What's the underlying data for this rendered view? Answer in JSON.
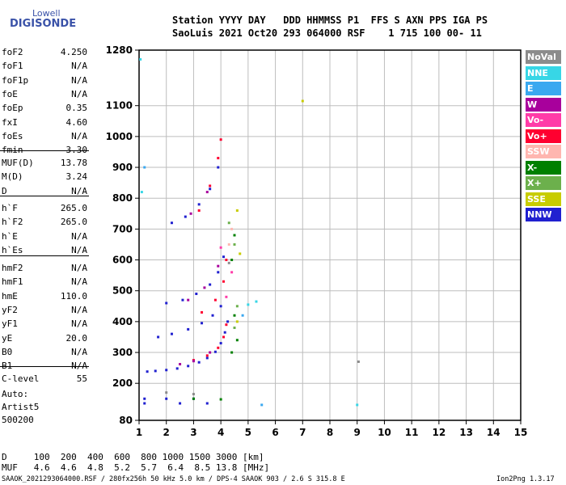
{
  "logo": {
    "line1": "Lowell",
    "line2": "DIGISONDE"
  },
  "header": {
    "line1": "Station YYYY DAY   DDD HHMMSS P1  FFS S AXN PPS IGA PS",
    "line2": "SaoLuis 2021 Oct20 293 064000 RSF    1 715 100 00- 11"
  },
  "params": [
    {
      "k": "foF2",
      "v": "4.250"
    },
    {
      "k": "foF1",
      "v": "N/A"
    },
    {
      "k": "foF1p",
      "v": "N/A"
    },
    {
      "k": "foE",
      "v": "N/A"
    },
    {
      "k": "foEp",
      "v": "0.35"
    },
    {
      "k": "fxI",
      "v": "4.60"
    },
    {
      "k": "foEs",
      "v": "N/A"
    },
    {
      "k": "fmin",
      "v": "3.30"
    },
    {
      "k": "MUF(D)",
      "v": "13.78"
    },
    {
      "k": "M(D)",
      "v": "3.24"
    },
    {
      "k": "D",
      "v": "N/A"
    },
    {
      "k": "h`F",
      "v": "265.0"
    },
    {
      "k": "h`F2",
      "v": "265.0"
    },
    {
      "k": "h`E",
      "v": "N/A"
    },
    {
      "k": "h`Es",
      "v": "N/A"
    },
    {
      "k": "hmF2",
      "v": "N/A"
    },
    {
      "k": "hmF1",
      "v": "N/A"
    },
    {
      "k": "hmE",
      "v": "110.0"
    },
    {
      "k": "yF2",
      "v": "N/A"
    },
    {
      "k": "yF1",
      "v": "N/A"
    },
    {
      "k": "yE",
      "v": "20.0"
    },
    {
      "k": "B0",
      "v": "N/A"
    },
    {
      "k": "B1",
      "v": "N/A"
    },
    {
      "k": "C-level",
      "v": "55"
    }
  ],
  "auto": {
    "l1": "Auto:",
    "l2": "Artist5",
    "l3": "500200"
  },
  "legend": [
    {
      "label": "NoVal",
      "color": "#8c8c8c"
    },
    {
      "label": "NNE",
      "color": "#37d6e6"
    },
    {
      "label": "E",
      "color": "#3aa8f0"
    },
    {
      "label": "W",
      "color": "#a8009c"
    },
    {
      "label": "Vo-",
      "color": "#ff3ca8"
    },
    {
      "label": "Vo+",
      "color": "#ff0030"
    },
    {
      "label": "SSW",
      "color": "#ffb6b0"
    },
    {
      "label": "X-",
      "color": "#008000"
    },
    {
      "label": "X+",
      "color": "#6cb04c"
    },
    {
      "label": "SSE",
      "color": "#c8cc00"
    },
    {
      "label": "NNW",
      "color": "#2020d0"
    }
  ],
  "footer": {
    "d_line": "D     100  200  400  600  800 1000 1500 3000 [km]",
    "muf_line": "MUF   4.6  4.6  4.8  5.2  5.7  6.4  8.5 13.8 [MHz]",
    "bottom": "SAAOK_2021293064000.RSF / 280fx256h 50 kHz 5.0 km / DPS-4 SAAOK 903 / 2.6 S 315.8 E",
    "version": "Ion2Png 1.3.17"
  },
  "chart_data": {
    "type": "scatter",
    "xlabel": "",
    "ylabel": "",
    "xlim": [
      1,
      15
    ],
    "ylim": [
      80,
      1280
    ],
    "x_ticks": [
      "1",
      "2",
      "3",
      "4",
      "5",
      "6",
      "7",
      "8",
      "9",
      "10",
      "11",
      "12",
      "13",
      "14",
      "15"
    ],
    "y_ticks": [
      "80",
      "200",
      "300",
      "400",
      "500",
      "600",
      "700",
      "800",
      "900",
      "1000",
      "1100",
      "1280"
    ],
    "y_tick_values": [
      80,
      200,
      300,
      400,
      500,
      600,
      700,
      800,
      900,
      1000,
      1100,
      1280
    ],
    "grid": true,
    "series": [
      {
        "name": "NNW",
        "color": "#2020d0",
        "points": [
          [
            1.3,
            238
          ],
          [
            1.6,
            240
          ],
          [
            2.0,
            243
          ],
          [
            2.4,
            248
          ],
          [
            2.8,
            256
          ],
          [
            3.2,
            268
          ],
          [
            3.5,
            282
          ],
          [
            3.8,
            302
          ],
          [
            4.0,
            330
          ],
          [
            4.15,
            365
          ],
          [
            4.25,
            400
          ],
          [
            1.7,
            350
          ],
          [
            2.2,
            360
          ],
          [
            2.8,
            375
          ],
          [
            3.3,
            395
          ],
          [
            3.7,
            420
          ],
          [
            4.0,
            450
          ],
          [
            2.0,
            460
          ],
          [
            2.6,
            470
          ],
          [
            3.1,
            490
          ],
          [
            3.6,
            520
          ],
          [
            3.9,
            560
          ],
          [
            4.1,
            610
          ],
          [
            2.2,
            720
          ],
          [
            2.7,
            740
          ],
          [
            3.2,
            780
          ],
          [
            3.6,
            830
          ],
          [
            3.9,
            900
          ],
          [
            1.2,
            150
          ],
          [
            2.0,
            150
          ],
          [
            3.0,
            150
          ],
          [
            1.2,
            135
          ],
          [
            2.5,
            135
          ],
          [
            3.5,
            135
          ]
        ]
      },
      {
        "name": "Vo+",
        "color": "#ff0030",
        "points": [
          [
            3.0,
            275
          ],
          [
            3.5,
            290
          ],
          [
            3.9,
            315
          ],
          [
            4.1,
            350
          ],
          [
            4.2,
            390
          ],
          [
            3.3,
            430
          ],
          [
            3.8,
            470
          ],
          [
            4.1,
            530
          ],
          [
            4.2,
            600
          ],
          [
            3.2,
            760
          ],
          [
            3.6,
            840
          ],
          [
            3.9,
            930
          ],
          [
            4.0,
            990
          ]
        ]
      },
      {
        "name": "W",
        "color": "#a8009c",
        "points": [
          [
            2.5,
            262
          ],
          [
            3.0,
            272
          ],
          [
            3.6,
            300
          ],
          [
            2.8,
            470
          ],
          [
            3.4,
            510
          ],
          [
            3.9,
            580
          ],
          [
            2.9,
            750
          ],
          [
            3.5,
            820
          ]
        ]
      },
      {
        "name": "X-",
        "color": "#008000",
        "points": [
          [
            4.4,
            300
          ],
          [
            4.6,
            340
          ],
          [
            4.5,
            420
          ],
          [
            4.4,
            600
          ],
          [
            4.5,
            680
          ],
          [
            3.0,
            150
          ],
          [
            4.0,
            148
          ]
        ]
      },
      {
        "name": "X+",
        "color": "#6cb04c",
        "points": [
          [
            4.5,
            380
          ],
          [
            4.6,
            450
          ],
          [
            4.5,
            650
          ],
          [
            4.3,
            720
          ]
        ]
      },
      {
        "name": "SSE",
        "color": "#c8cc00",
        "points": [
          [
            4.6,
            400
          ],
          [
            4.7,
            620
          ],
          [
            4.6,
            760
          ],
          [
            7.0,
            1115
          ]
        ]
      },
      {
        "name": "NNE",
        "color": "#37d6e6",
        "points": [
          [
            1.05,
            1250
          ],
          [
            5.0,
            455
          ],
          [
            5.3,
            465
          ],
          [
            1.1,
            820
          ],
          [
            9.0,
            130
          ]
        ]
      },
      {
        "name": "E",
        "color": "#3aa8f0",
        "points": [
          [
            1.2,
            900
          ],
          [
            4.8,
            420
          ],
          [
            5.5,
            130
          ]
        ]
      },
      {
        "name": "Vo-",
        "color": "#ff3ca8",
        "points": [
          [
            4.0,
            640
          ],
          [
            4.2,
            480
          ],
          [
            4.4,
            560
          ]
        ]
      },
      {
        "name": "SSW",
        "color": "#ffb6b0",
        "points": [
          [
            4.3,
            650
          ],
          [
            4.4,
            700
          ]
        ]
      },
      {
        "name": "NoVal",
        "color": "#8c8c8c",
        "points": [
          [
            2.0,
            170
          ],
          [
            3.0,
            165
          ],
          [
            9.05,
            270
          ],
          [
            4.3,
            590
          ]
        ]
      }
    ]
  }
}
